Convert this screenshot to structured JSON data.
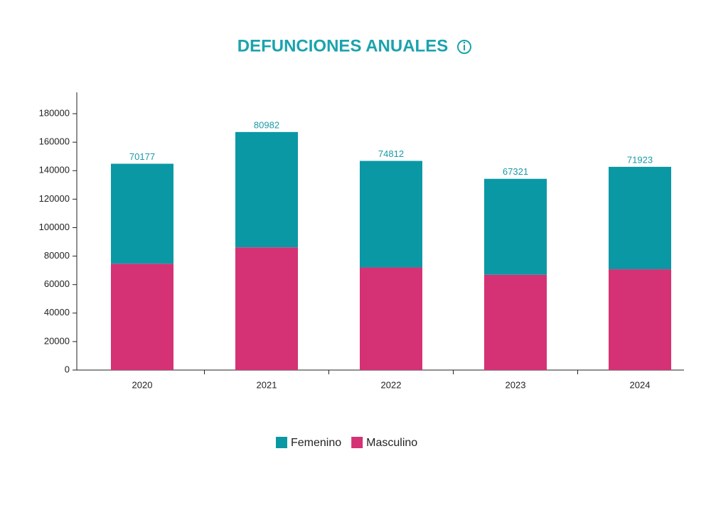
{
  "chart_data": {
    "type": "stacked_bar",
    "title": "DEFUNCIONES ANUALES",
    "categories": [
      "2020",
      "2021",
      "2022",
      "2023",
      "2024"
    ],
    "series": [
      {
        "name": "Masculino",
        "color": "#d43274",
        "values": [
          74686,
          86161,
          72050,
          66942,
          70772
        ]
      },
      {
        "name": "Femenino",
        "color": "#0b98a5",
        "values": [
          70177,
          80982,
          74812,
          67321,
          71923
        ]
      }
    ],
    "ylim": [
      0,
      195000
    ],
    "yticks": [
      0,
      20000,
      40000,
      60000,
      80000,
      100000,
      120000,
      140000,
      160000,
      180000
    ],
    "legend": "bottom"
  }
}
